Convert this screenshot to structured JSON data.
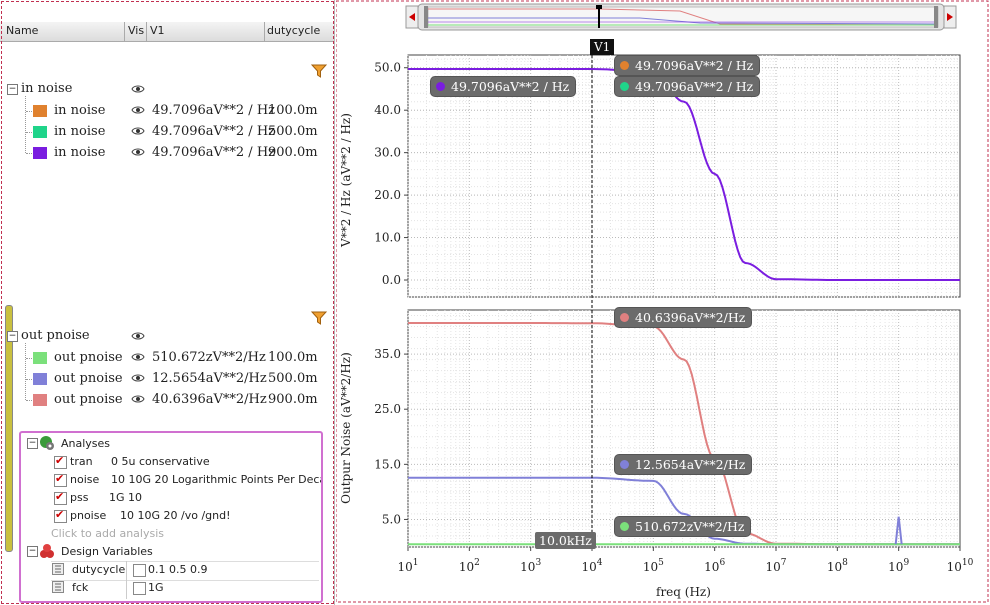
{
  "columns": {
    "name": "Name",
    "vis": "Vis",
    "v1": "V1",
    "dutycycle": "dutycycle"
  },
  "groups": [
    {
      "label": "in noise",
      "rows": [
        {
          "name": "in noise",
          "value": "49.7096aV**2 / Hz",
          "duty": "100.0m",
          "color": "#e0812e"
        },
        {
          "name": "in noise",
          "value": "49.7096aV**2 / Hz",
          "duty": "500.0m",
          "color": "#1fd48a"
        },
        {
          "name": "in noise",
          "value": "49.7096aV**2 / Hz",
          "duty": "900.0m",
          "color": "#7a1de0"
        }
      ]
    },
    {
      "label": "out pnoise",
      "rows": [
        {
          "name": "out pnoise",
          "value": "510.672zV**2/Hz",
          "duty": "100.0m",
          "color": "#7be07b"
        },
        {
          "name": "out pnoise",
          "value": "12.5654aV**2/Hz",
          "duty": "500.0m",
          "color": "#8080d8"
        },
        {
          "name": "out pnoise",
          "value": "40.6396aV**2/Hz",
          "duty": "900.0m",
          "color": "#e08080"
        }
      ]
    }
  ],
  "analyses": {
    "title": "Analyses",
    "items": [
      {
        "name": "tran",
        "args": "0 5u conservative"
      },
      {
        "name": "noise",
        "args": "10 10G 20 Logarithmic Points Per Deca..."
      },
      {
        "name": "pss",
        "args": "1G 10"
      },
      {
        "name": "pnoise",
        "args": "10 10G 20 /vo /gnd!"
      }
    ],
    "add_hint": "Click to add analysis",
    "design_title": "Design Variables",
    "vars": [
      {
        "name": "dutycycle",
        "value": "0.1 0.5 0.9"
      },
      {
        "name": "fck",
        "value": "1G"
      }
    ]
  },
  "cursor": {
    "label": "V1",
    "x_readout": "10.0kHz"
  },
  "tags": {
    "top_orange": "49.7096aV**2 / Hz",
    "top_green": "49.7096aV**2 / Hz",
    "top_purple": "49.7096aV**2 / Hz",
    "bot_red": "40.6396aV**2/Hz",
    "bot_blue": "12.5654aV**2/Hz",
    "bot_green": "510.672zV**2/Hz"
  },
  "chart_data": [
    {
      "type": "line",
      "ylabel": "V**2 / Hz (aV**2 / Hz)",
      "x_scale": "log",
      "xlim": [
        10,
        10000000000
      ],
      "ylim": [
        -4,
        53
      ],
      "yticks": [
        0.0,
        10.0,
        20.0,
        30.0,
        40.0,
        50.0
      ],
      "yticklabels": [
        "0.0",
        "10.0",
        "20.0",
        "30.0",
        "40.0",
        "50.0"
      ],
      "grid": true,
      "series": [
        {
          "name": "in noise",
          "color": "#7a1de0",
          "x": [
            10,
            1000,
            10000,
            100000,
            316228,
            1000000,
            3162278,
            10000000,
            100000000,
            10000000000
          ],
          "y": [
            49.7,
            49.7,
            49.7,
            49.0,
            42.0,
            25.0,
            4.0,
            0.2,
            0.0,
            0.0
          ]
        }
      ]
    },
    {
      "type": "line",
      "ylabel": "Outpur Noise (aV**2/Hz)",
      "x_scale": "log",
      "xlim": [
        10,
        10000000000
      ],
      "ylim": [
        0,
        43
      ],
      "yticks": [
        5.0,
        15.0,
        25.0,
        35.0
      ],
      "yticklabels": [
        "5.0",
        "15.0",
        "25.0",
        "35.0"
      ],
      "xlabel": "freq (Hz)",
      "xticklabels": [
        "10^1",
        "10^2",
        "10^3",
        "10^4",
        "10^5",
        "10^6",
        "10^7",
        "10^8",
        "10^9",
        "10^10"
      ],
      "grid": true,
      "series": [
        {
          "name": "out pnoise",
          "color": "#e08080",
          "x": [
            10,
            1000,
            10000,
            100000,
            316228,
            1000000,
            3162278,
            10000000,
            100000000,
            10000000000
          ],
          "y": [
            40.64,
            40.64,
            40.6,
            40.0,
            34.0,
            16.0,
            2.5,
            0.6,
            0.5,
            0.5
          ]
        },
        {
          "name": "out pnoise",
          "color": "#8080d8",
          "x": [
            10,
            1000,
            10000,
            100000,
            316228,
            1000000,
            3162278,
            10000000,
            100000000,
            1000000000,
            10000000000
          ],
          "y": [
            12.57,
            12.57,
            12.56,
            12.0,
            6.0,
            1.5,
            0.6,
            0.5,
            0.5,
            0.5,
            0.5
          ]
        },
        {
          "name": "out pnoise",
          "color": "#7be07b",
          "x": [
            10,
            10000,
            10000000,
            10000000000
          ],
          "y": [
            0.51,
            0.51,
            0.51,
            0.51
          ]
        }
      ]
    }
  ]
}
